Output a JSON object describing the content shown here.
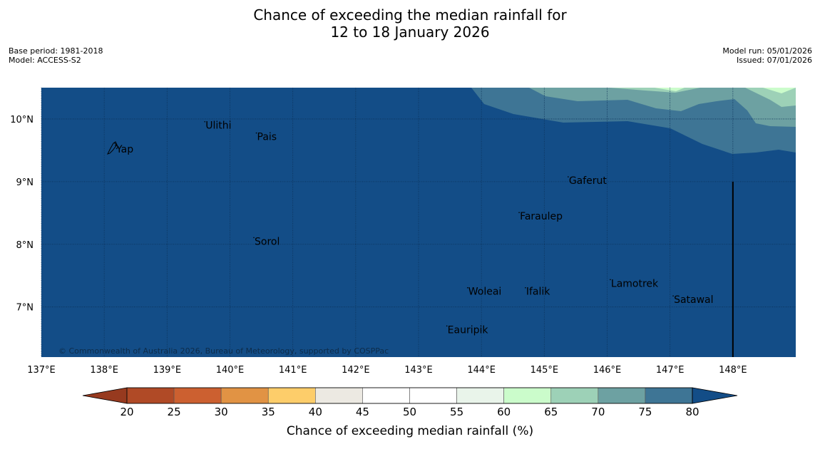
{
  "title": {
    "line1": "Chance of exceeding the median rainfall for",
    "line2": "12 to 18 January 2026"
  },
  "metadata": {
    "base_period": "Base period: 1981-2018",
    "model": "Model: ACCESS-S2",
    "model_run": "Model run: 05/01/2026",
    "issued": "Issued: 07/01/2026"
  },
  "map": {
    "lon_range": [
      137.0,
      149.0
    ],
    "lat_range": [
      6.2,
      10.5
    ],
    "lon_ticks": [
      {
        "value": 137,
        "label": "137°E"
      },
      {
        "value": 138,
        "label": "138°E"
      },
      {
        "value": 139,
        "label": "139°E"
      },
      {
        "value": 140,
        "label": "140°E"
      },
      {
        "value": 141,
        "label": "141°E"
      },
      {
        "value": 142,
        "label": "142°E"
      },
      {
        "value": 143,
        "label": "143°E"
      },
      {
        "value": 144,
        "label": "144°E"
      },
      {
        "value": 145,
        "label": "145°E"
      },
      {
        "value": 146,
        "label": "146°E"
      },
      {
        "value": 147,
        "label": "147°E"
      },
      {
        "value": 148,
        "label": "148°E"
      }
    ],
    "lat_ticks": [
      {
        "value": 10,
        "label": "10°N"
      },
      {
        "value": 9,
        "label": "9°N"
      },
      {
        "value": 8,
        "label": "8°N"
      },
      {
        "value": 7,
        "label": "7°N"
      }
    ],
    "places": [
      {
        "name": "Yap",
        "lon": 138.18,
        "lat": 9.52
      },
      {
        "name": "Ulithi",
        "lon": 139.6,
        "lat": 9.9
      },
      {
        "name": "Pais",
        "lon": 140.42,
        "lat": 9.72
      },
      {
        "name": "Gaferut",
        "lon": 145.38,
        "lat": 9.02
      },
      {
        "name": "Faraulep",
        "lon": 144.6,
        "lat": 8.45
      },
      {
        "name": "Sorol",
        "lon": 140.38,
        "lat": 8.05
      },
      {
        "name": "Lamotrek",
        "lon": 146.05,
        "lat": 7.38
      },
      {
        "name": "Woleai",
        "lon": 143.78,
        "lat": 7.25
      },
      {
        "name": "Ifalik",
        "lon": 144.7,
        "lat": 7.25
      },
      {
        "name": "Satawal",
        "lon": 147.05,
        "lat": 7.12
      },
      {
        "name": "Eauripik",
        "lon": 143.45,
        "lat": 6.64
      }
    ],
    "boundary_line_lon": 148,
    "base_value_color": "#134d87",
    "copyright": "© Commonwealth of Australia 2026, Bureau of Meteorology, supported by COSPPac"
  },
  "colorbar": {
    "label": "Chance of exceeding median rainfall (%)",
    "ticks": [
      "20",
      "25",
      "30",
      "35",
      "40",
      "45",
      "50",
      "55",
      "60",
      "65",
      "70",
      "75",
      "80"
    ],
    "below_color": "#973a1f",
    "above_color": "#134d87",
    "bins": [
      {
        "from": 20,
        "to": 25,
        "color": "#b04a26"
      },
      {
        "from": 25,
        "to": 30,
        "color": "#cc6030"
      },
      {
        "from": 30,
        "to": 35,
        "color": "#e19344"
      },
      {
        "from": 35,
        "to": 40,
        "color": "#fdcd6a"
      },
      {
        "from": 40,
        "to": 45,
        "color": "#ece9e2"
      },
      {
        "from": 45,
        "to": 50,
        "color": "#ffffff"
      },
      {
        "from": 50,
        "to": 55,
        "color": "#ffffff"
      },
      {
        "from": 55,
        "to": 60,
        "color": "#e9f4ea"
      },
      {
        "from": 60,
        "to": 65,
        "color": "#cbfccb"
      },
      {
        "from": 65,
        "to": 70,
        "color": "#9dd1b7"
      },
      {
        "from": 70,
        "to": 75,
        "color": "#6da1a2"
      },
      {
        "from": 75,
        "to": 80,
        "color": "#3e7595"
      }
    ]
  }
}
